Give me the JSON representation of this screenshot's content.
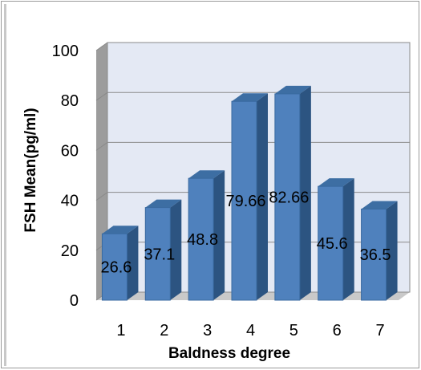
{
  "chart_data": {
    "type": "bar",
    "categories": [
      "1",
      "2",
      "3",
      "4",
      "5",
      "6",
      "7"
    ],
    "values": [
      26.6,
      37.1,
      48.8,
      79.66,
      82.66,
      45.6,
      36.5
    ],
    "value_labels": [
      "26.6",
      "37.1",
      "48.8",
      "79.66",
      "82.66",
      "45.6",
      "36.5"
    ],
    "title": "",
    "xlabel": "Baldness degree",
    "ylabel": "FSH Mean(pg/ml)",
    "ylim": [
      0,
      100
    ],
    "yticks": [
      "0",
      "20",
      "40",
      "60",
      "80",
      "100"
    ],
    "grid": true,
    "legend": "none",
    "style": "3d-column",
    "colors": {
      "bar_front": "#4f81bd",
      "bar_side": "#2c5481",
      "bar_top": "#3d6ea3",
      "plot_wall": "#e4e9f4",
      "side_wall": "#9c9c9c",
      "floor": "#c9c9c9",
      "gridline": "#8a8a8a"
    }
  }
}
